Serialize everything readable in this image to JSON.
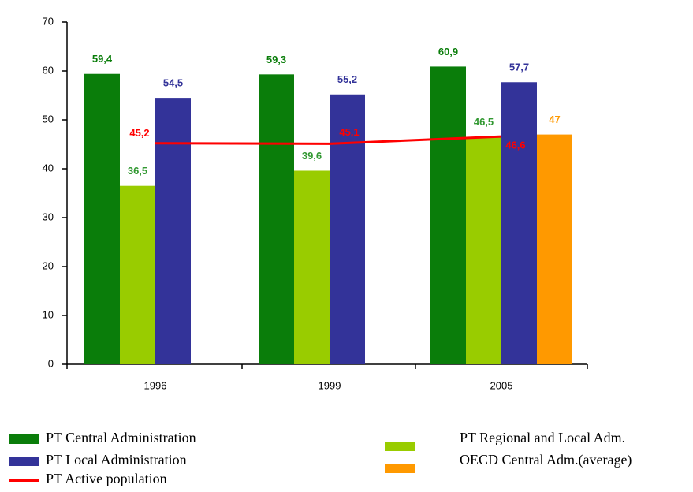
{
  "chart_data": {
    "type": "bar",
    "categories": [
      "1996",
      "1999",
      "2005"
    ],
    "ylim": [
      0,
      70
    ],
    "yticks": [
      0,
      10,
      20,
      30,
      40,
      50,
      60,
      70
    ],
    "series": [
      {
        "name": "PT Central Administration",
        "color": "#0a7d0a",
        "values": [
          59.4,
          59.3,
          60.9
        ],
        "value_labels": [
          "59,4",
          "59,3",
          "60,9"
        ]
      },
      {
        "name": "PT Regional and Local Adm.",
        "color": "#99cc00",
        "values": [
          36.5,
          39.6,
          46.5
        ],
        "value_labels": [
          "36,5",
          "39,6",
          "46,5"
        ]
      },
      {
        "name": "PT Local Administration",
        "color": "#333399",
        "values": [
          54.5,
          55.2,
          57.7
        ],
        "value_labels": [
          "54,5",
          "55,2",
          "57,7"
        ]
      },
      {
        "name": "OECD Central Adm.(average)",
        "color": "#ff9900",
        "values": [
          null,
          null,
          47
        ]
      },
      {
        "name": "PT Active population",
        "type": "line",
        "color": "#ff0000",
        "values": [
          45.2,
          45.1,
          46.6
        ],
        "value_labels": [
          "45,2",
          "45,1",
          "46,6"
        ]
      }
    ]
  }
}
